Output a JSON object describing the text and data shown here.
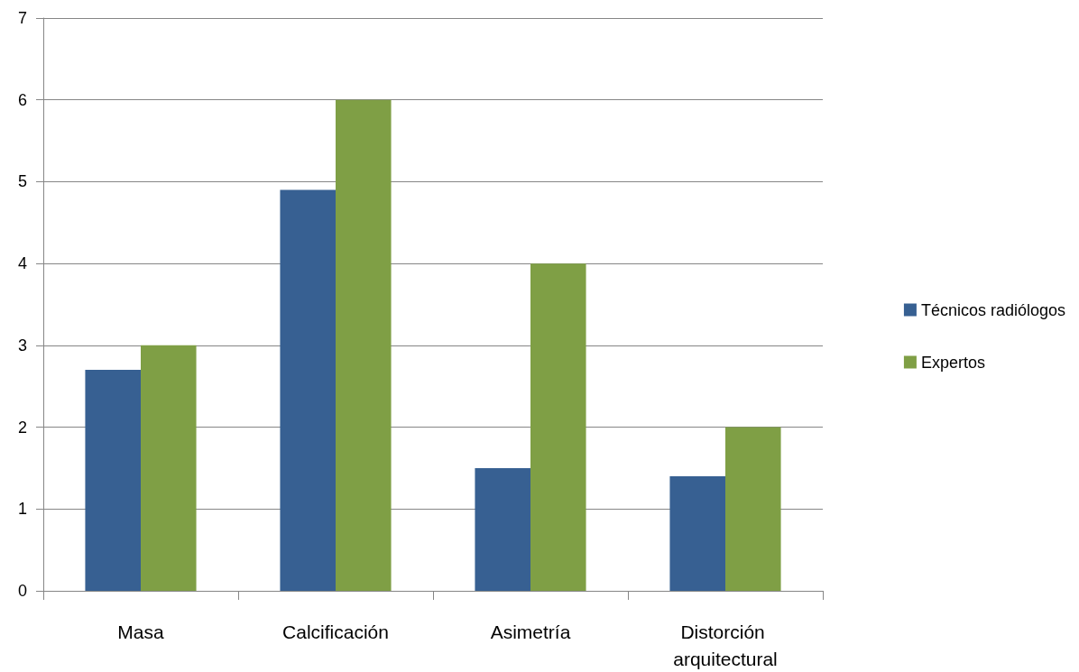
{
  "chart_data": {
    "type": "bar",
    "categories": [
      "Masa",
      "Calcificación",
      "Asimetría",
      "Distorción arquitectural"
    ],
    "series": [
      {
        "name": "Técnicos radiólogos",
        "color": "#376092",
        "values": [
          2.7,
          4.9,
          1.5,
          1.4
        ]
      },
      {
        "name": "Expertos",
        "color": "#7f9f45",
        "values": [
          3,
          6,
          4,
          2
        ]
      }
    ],
    "ylim": [
      0,
      7
    ],
    "yticks": [
      0,
      1,
      2,
      3,
      4,
      5,
      6,
      7
    ],
    "grid": "y",
    "legend": "right"
  }
}
